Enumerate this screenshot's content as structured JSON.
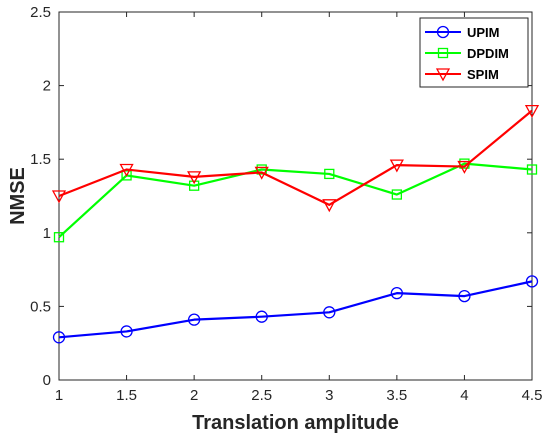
{
  "chart_data": {
    "type": "line",
    "title": "",
    "xlabel": "Translation amplitude",
    "ylabel": "NMSE",
    "xlim": [
      1,
      4.5
    ],
    "ylim": [
      0,
      2.5
    ],
    "x": [
      1,
      1.5,
      2,
      2.5,
      3,
      3.5,
      4,
      4.5
    ],
    "xticks": [
      "1",
      "1.5",
      "2",
      "2.5",
      "3",
      "3.5",
      "4",
      "4.5"
    ],
    "yticks": [
      "0",
      "0.5",
      "1",
      "1.5",
      "2",
      "2.5"
    ],
    "grid": false,
    "legend_position": "top-right",
    "series": [
      {
        "name": "UPIM",
        "color": "#0000ff",
        "marker": "circle",
        "values": [
          0.29,
          0.33,
          0.41,
          0.43,
          0.46,
          0.59,
          0.57,
          0.67
        ]
      },
      {
        "name": "DPDIM",
        "color": "#00ff00",
        "marker": "square",
        "values": [
          0.97,
          1.39,
          1.32,
          1.43,
          1.4,
          1.26,
          1.47,
          1.43
        ]
      },
      {
        "name": "SPIM",
        "color": "#ff0000",
        "marker": "triangle-down",
        "values": [
          1.25,
          1.43,
          1.38,
          1.41,
          1.19,
          1.46,
          1.45,
          1.83
        ]
      }
    ]
  }
}
